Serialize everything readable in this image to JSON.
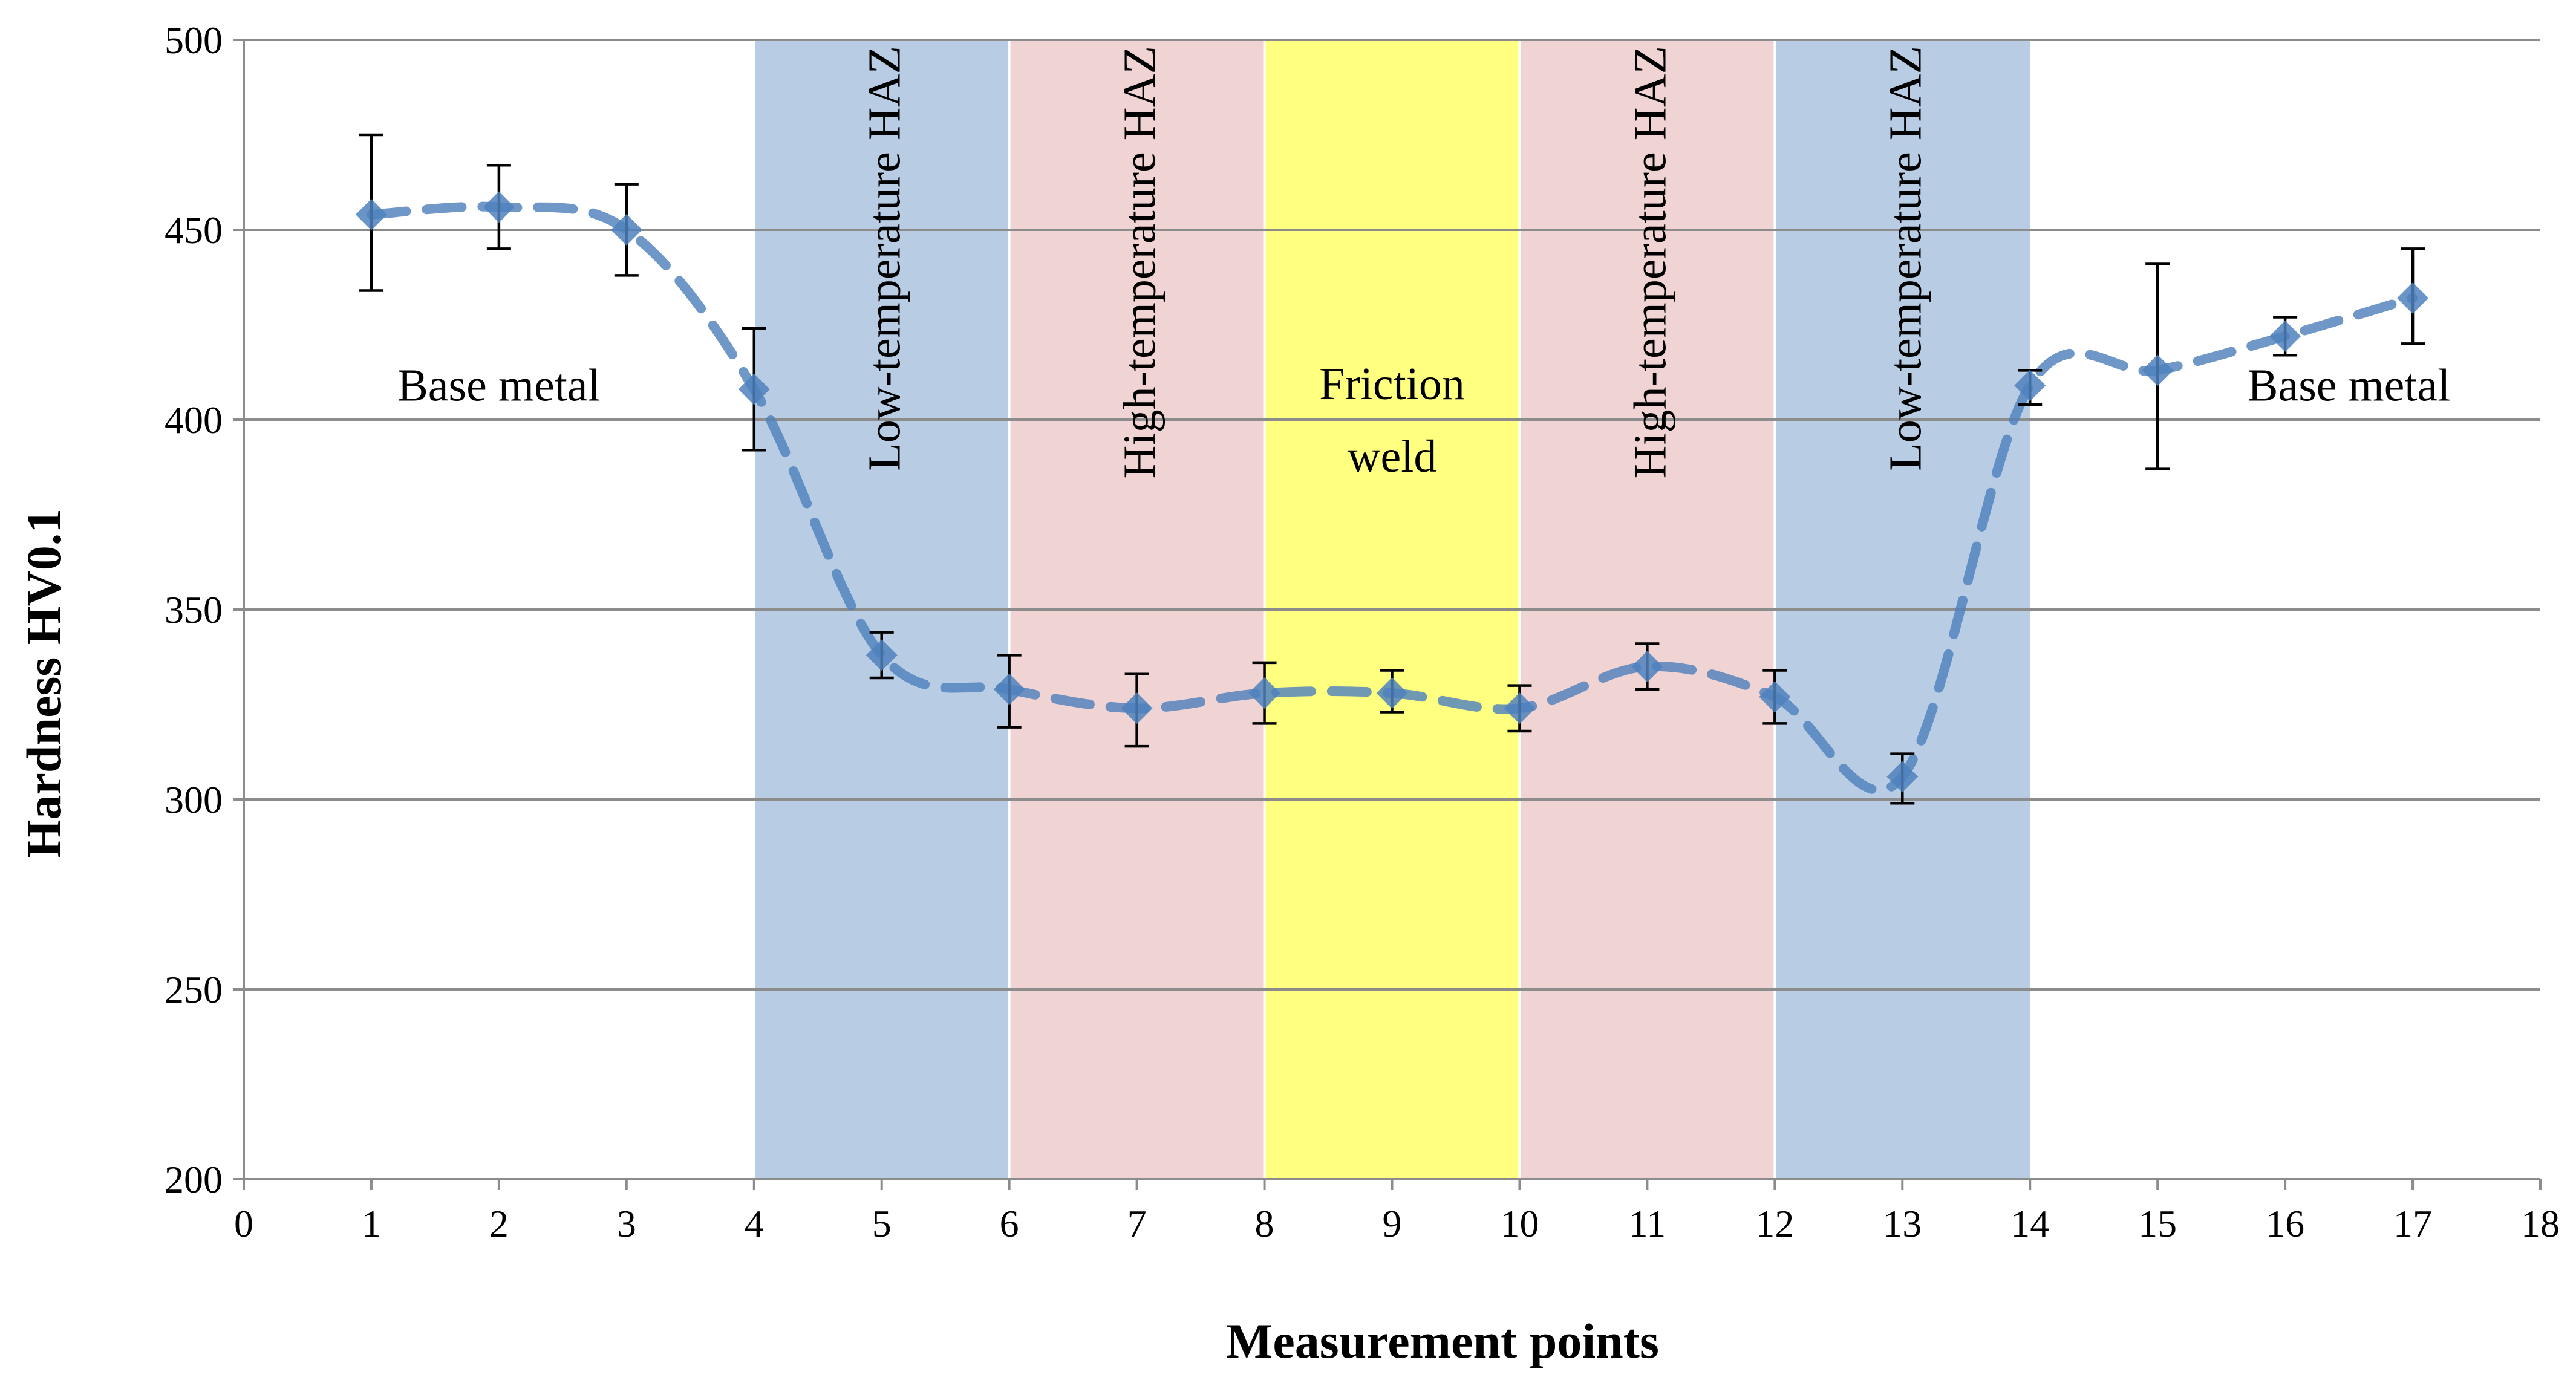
{
  "chart_data": {
    "type": "line",
    "xlabel": "Measurement points",
    "ylabel": "Hardness HV0.1",
    "xlim": [
      0,
      18
    ],
    "ylim": [
      200,
      500
    ],
    "x_ticks": [
      0,
      1,
      2,
      3,
      4,
      5,
      6,
      7,
      8,
      9,
      10,
      11,
      12,
      13,
      14,
      15,
      16,
      17,
      18
    ],
    "y_ticks": [
      200,
      250,
      300,
      350,
      400,
      450,
      500
    ],
    "grid": "horizontal",
    "series": [
      {
        "line_style": "dashed",
        "marker": "diamond",
        "x": [
          1,
          2,
          3,
          4,
          5,
          6,
          7,
          8,
          9,
          10,
          11,
          12,
          13,
          14,
          15,
          16,
          17
        ],
        "y": [
          454,
          456,
          450,
          408,
          338,
          329,
          324,
          328,
          328,
          324,
          335,
          327,
          306,
          409,
          413,
          422,
          432
        ],
        "error_low": [
          20,
          11,
          12,
          16,
          6,
          10,
          10,
          8,
          5,
          6,
          6,
          7,
          7,
          5,
          26,
          5,
          12
        ],
        "error_high": [
          21,
          11,
          12,
          16,
          6,
          9,
          9,
          8,
          6,
          6,
          6,
          7,
          6,
          4,
          28,
          5,
          13
        ]
      }
    ],
    "zones": [
      {
        "from": 4,
        "to": 6,
        "label": "Low-temperature HAZ",
        "color": "#b8cce4",
        "orientation": "vertical"
      },
      {
        "from": 6,
        "to": 8,
        "label": "High-temperature HAZ",
        "color": "#f0d4d4",
        "orientation": "vertical"
      },
      {
        "from": 8,
        "to": 10,
        "label_lines": [
          "Friction",
          "weld"
        ],
        "color": "#ffff80",
        "orientation": "horizontal"
      },
      {
        "from": 10,
        "to": 12,
        "label": "High-temperature HAZ",
        "color": "#f0d4d4",
        "orientation": "vertical"
      },
      {
        "from": 12,
        "to": 14,
        "label": "Low-temperature HAZ",
        "color": "#b8cce4",
        "orientation": "vertical"
      }
    ],
    "annotations": [
      {
        "text": "Base metal",
        "x": 2.0,
        "y": 405
      },
      {
        "text": "Base metal",
        "x": 16.5,
        "y": 405
      }
    ],
    "colors": {
      "line": "#4f81bd",
      "marker": "#4f81bd",
      "error_bar": "#000000",
      "grid": "#8c8c8c"
    }
  }
}
